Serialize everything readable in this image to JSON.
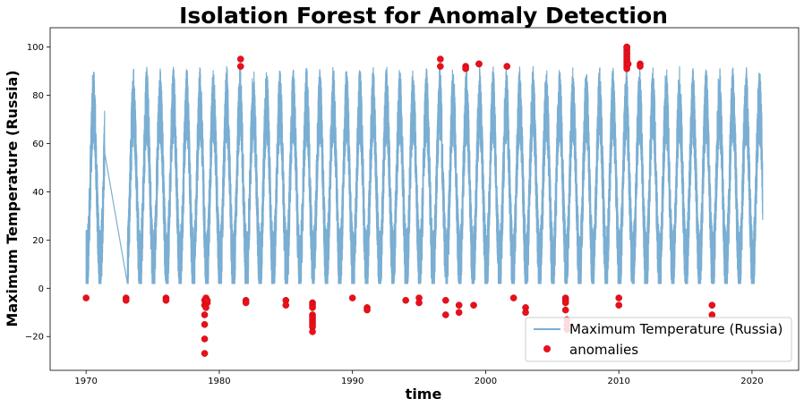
{
  "chart_data": {
    "type": "line",
    "title": "Isolation Forest for Anomaly Detection",
    "xlabel": "time",
    "ylabel": "Maximum Temperature (Russia)",
    "xlim": [
      1967.3,
      2023.5
    ],
    "ylim": [
      -34,
      108
    ],
    "xticks": [
      1970,
      1980,
      1990,
      2000,
      2010,
      2020
    ],
    "xtick_labels": [
      "1970",
      "1980",
      "1990",
      "2000",
      "2010",
      "2020"
    ],
    "yticks": [
      -20,
      0,
      20,
      40,
      60,
      80,
      100
    ],
    "ytick_labels": [
      "−20",
      "0",
      "20",
      "40",
      "60",
      "80",
      "100"
    ],
    "legend": {
      "location": "lower right"
    },
    "colors": {
      "line": "#7aaed2",
      "anomalies": "#e8101a"
    },
    "series": [
      {
        "name": "Maximum Temperature (Russia)",
        "kind": "line",
        "description_values": {
          "start": 1970.0,
          "gap": [
            1971.4,
            1973.1
          ],
          "end": 2020.8
        }
      },
      {
        "name": "anomalies",
        "kind": "scatter",
        "x": [
          1970.0,
          1973.0,
          1973.0,
          1976.0,
          1976.0,
          1978.9,
          1978.9,
          1978.9,
          1978.9,
          1978.9,
          1978.9,
          1979.0,
          1979.0,
          1979.1,
          1979.1,
          1981.6,
          1981.6,
          1982.0,
          1982.0,
          1985.0,
          1985.0,
          1987.0,
          1987.0,
          1987.0,
          1987.0,
          1987.0,
          1987.0,
          1987.0,
          1987.0,
          1987.0,
          1987.0,
          1990.0,
          1991.1,
          1991.1,
          1994.0,
          1995.0,
          1995.0,
          1996.6,
          1996.6,
          1997.0,
          1997.0,
          1998.0,
          1998.0,
          1998.5,
          1998.5,
          1999.1,
          1999.5,
          1999.5,
          2001.6,
          2002.1,
          2003.0,
          2003.0,
          2006.0,
          2006.0,
          2006.0,
          2006.0,
          2006.1,
          2006.1,
          2006.1,
          2010.0,
          2010.0,
          2010.6,
          2010.6,
          2010.6,
          2010.6,
          2010.6,
          2010.6,
          2010.6,
          2010.6,
          2010.6,
          2010.6,
          2010.6,
          2010.7,
          2011.6,
          2011.6,
          2017.0,
          2017.0
        ],
        "y": [
          -4,
          -4,
          -5,
          -4,
          -5,
          -27,
          -21,
          -15,
          -11,
          -7,
          -5,
          -8,
          -4,
          -6,
          -5,
          95,
          92,
          -5,
          -6,
          -5,
          -7,
          -6,
          -7,
          -8,
          -11,
          -12,
          -13,
          -14,
          -15,
          -16,
          -18,
          -4,
          -8,
          -9,
          -5,
          -4,
          -6,
          95,
          92,
          -5,
          -11,
          -7,
          -10,
          92,
          91,
          -7,
          93,
          93,
          92,
          -4,
          -8,
          -10,
          -4,
          -5,
          -6,
          -9,
          -13,
          -15,
          -17,
          -4,
          -7,
          100,
          99,
          98,
          97,
          96,
          95,
          94,
          93,
          92,
          91,
          100,
          93,
          93,
          92,
          -7,
          -11
        ]
      }
    ]
  }
}
